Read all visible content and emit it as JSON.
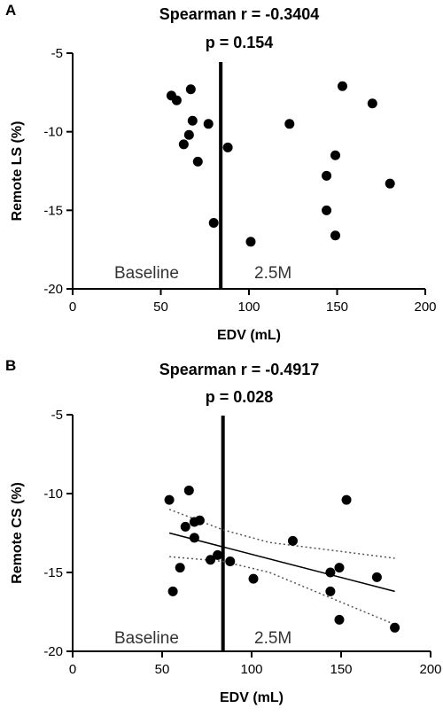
{
  "chart_data": [
    {
      "type": "scatter",
      "panel_letter": "A",
      "title_line1": "Spearman r = -0.3404",
      "title_line2": "p = 0.154",
      "xlabel": "EDV (mL)",
      "ylabel": "Remote LS (%)",
      "xlim": [
        0,
        200
      ],
      "ylim": [
        -20,
        -5
      ],
      "xticks": [
        0,
        50,
        100,
        150,
        200
      ],
      "yticks": [
        -5,
        -10,
        -15,
        -20
      ],
      "x_tick_labels": [
        "0",
        "50",
        "100",
        "150",
        "200"
      ],
      "y_tick_labels": [
        "-5",
        "-10",
        "-15",
        "-20"
      ],
      "vline_x": 84,
      "annotations": [
        "Baseline",
        "2.5M"
      ],
      "grid": false,
      "points": [
        {
          "x": 56,
          "y": -7.7
        },
        {
          "x": 59,
          "y": -8.0
        },
        {
          "x": 67,
          "y": -7.3
        },
        {
          "x": 68,
          "y": -9.3
        },
        {
          "x": 66,
          "y": -10.2
        },
        {
          "x": 63,
          "y": -10.8
        },
        {
          "x": 77,
          "y": -9.5
        },
        {
          "x": 71,
          "y": -11.9
        },
        {
          "x": 80,
          "y": -15.8
        },
        {
          "x": 88,
          "y": -11.0
        },
        {
          "x": 101,
          "y": -17.0
        },
        {
          "x": 123,
          "y": -9.5
        },
        {
          "x": 144,
          "y": -12.8
        },
        {
          "x": 144,
          "y": -15.0
        },
        {
          "x": 149,
          "y": -11.5
        },
        {
          "x": 149,
          "y": -16.6
        },
        {
          "x": 153,
          "y": -7.1
        },
        {
          "x": 170,
          "y": -8.2
        },
        {
          "x": 180,
          "y": -13.3
        }
      ],
      "fit_line": null
    },
    {
      "type": "scatter",
      "panel_letter": "B",
      "title_line1": "Spearman r = -0.4917",
      "title_line2": "p = 0.028",
      "xlabel": "EDV (mL)",
      "ylabel": "Remote CS (%)",
      "xlim": [
        0,
        200
      ],
      "ylim": [
        -20,
        -5
      ],
      "xticks": [
        0,
        50,
        100,
        150,
        200
      ],
      "yticks": [
        -5,
        -10,
        -15,
        -20
      ],
      "x_tick_labels": [
        "0",
        "50",
        "100",
        "150",
        "200"
      ],
      "y_tick_labels": [
        "-5",
        "-10",
        "-15",
        "-20"
      ],
      "vline_x": 84,
      "annotations": [
        "Baseline",
        "2.5M"
      ],
      "grid": false,
      "points": [
        {
          "x": 54,
          "y": -10.4
        },
        {
          "x": 65,
          "y": -9.8
        },
        {
          "x": 63,
          "y": -12.1
        },
        {
          "x": 68,
          "y": -11.8
        },
        {
          "x": 71,
          "y": -11.7
        },
        {
          "x": 68,
          "y": -12.8
        },
        {
          "x": 60,
          "y": -14.7
        },
        {
          "x": 56,
          "y": -16.2
        },
        {
          "x": 77,
          "y": -14.2
        },
        {
          "x": 81,
          "y": -13.9
        },
        {
          "x": 88,
          "y": -14.3
        },
        {
          "x": 101,
          "y": -15.4
        },
        {
          "x": 123,
          "y": -13.0
        },
        {
          "x": 144,
          "y": -15.0
        },
        {
          "x": 144,
          "y": -16.2
        },
        {
          "x": 149,
          "y": -14.7
        },
        {
          "x": 149,
          "y": -18.0
        },
        {
          "x": 153,
          "y": -10.4
        },
        {
          "x": 170,
          "y": -15.3
        },
        {
          "x": 180,
          "y": -18.5
        }
      ],
      "fit_line": {
        "x": [
          54,
          180
        ],
        "y": [
          -12.5,
          -16.2
        ]
      },
      "ci_upper": {
        "x": [
          54,
          84,
          110,
          180
        ],
        "y": [
          -11.0,
          -12.3,
          -13.1,
          -14.1
        ]
      },
      "ci_lower": {
        "x": [
          54,
          84,
          110,
          180
        ],
        "y": [
          -14.0,
          -14.3,
          -15.0,
          -18.3
        ]
      }
    }
  ]
}
